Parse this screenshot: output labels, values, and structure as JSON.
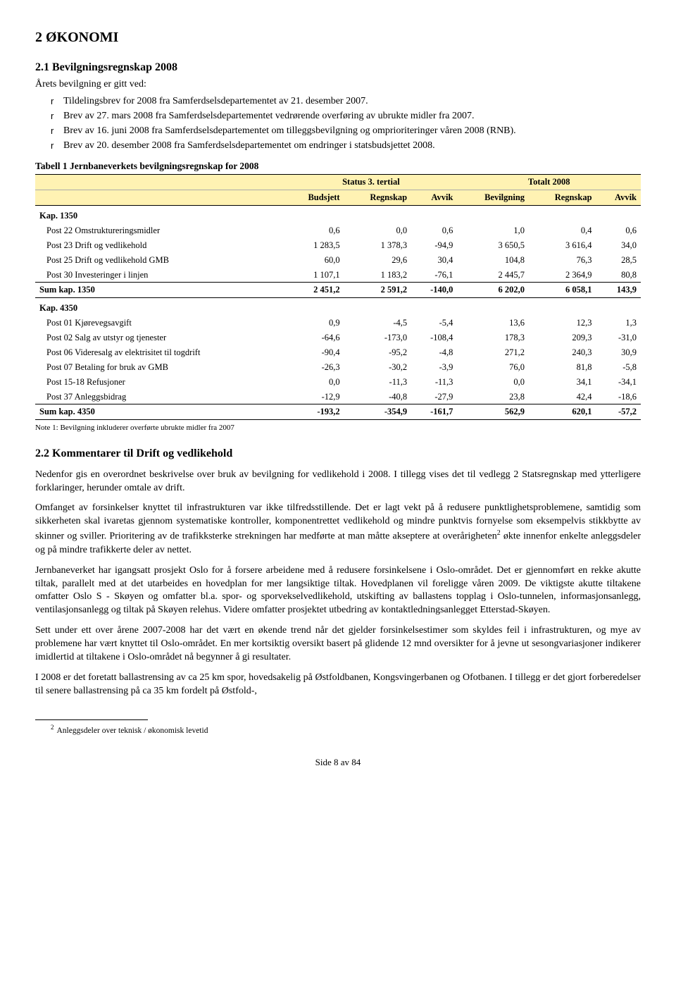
{
  "headings": {
    "h1": "2  ØKONOMI",
    "h2a": "2.1  Bevilgningsregnskap 2008",
    "h2a_sub": "Årets bevilgning er gitt ved:",
    "h2b": "2.2  Kommentarer til Drift og vedlikehold"
  },
  "bullets": [
    "Tildelingsbrev for 2008 fra Samferdselsdepartementet av 21. desember 2007.",
    "Brev av 27. mars 2008 fra Samferdselsdepartementet vedrørende overføring av ubrukte midler fra 2007.",
    "Brev av 16. juni 2008 fra Samferdselsdepartementet om tilleggsbevilgning og omprioriteringer våren 2008 (RNB).",
    "Brev av 20. desember 2008 fra Samferdselsdepartementet om endringer i statsbudsjettet 2008."
  ],
  "table": {
    "caption": "Tabell 1 Jernbaneverkets bevilgningsregnskap for 2008",
    "group1": "Status 3. tertial",
    "group2": "Totalt 2008",
    "cols": [
      "Budsjett",
      "Regnskap",
      "Avvik",
      "Bevilgning",
      "Regnskap",
      "Avvik"
    ],
    "sec1": "Kap. 1350",
    "rows1": [
      {
        "label": "Post 22 Omstruktureringsmidler",
        "v": [
          "0,6",
          "0,0",
          "0,6",
          "1,0",
          "0,4",
          "0,6"
        ]
      },
      {
        "label": "Post 23 Drift og vedlikehold",
        "v": [
          "1 283,5",
          "1 378,3",
          "-94,9",
          "3 650,5",
          "3 616,4",
          "34,0"
        ]
      },
      {
        "label": "Post 25 Drift og vedlikehold GMB",
        "v": [
          "60,0",
          "29,6",
          "30,4",
          "104,8",
          "76,3",
          "28,5"
        ]
      },
      {
        "label": "Post 30 Investeringer i linjen",
        "v": [
          "1 107,1",
          "1 183,2",
          "-76,1",
          "2 445,7",
          "2 364,9",
          "80,8"
        ]
      }
    ],
    "sum1": {
      "label": "Sum kap. 1350",
      "v": [
        "2 451,2",
        "2 591,2",
        "-140,0",
        "6 202,0",
        "6 058,1",
        "143,9"
      ]
    },
    "sec2": "Kap. 4350",
    "rows2": [
      {
        "label": "Post 01 Kjørevegsavgift",
        "v": [
          "0,9",
          "-4,5",
          "-5,4",
          "13,6",
          "12,3",
          "1,3"
        ]
      },
      {
        "label": "Post 02 Salg av utstyr og tjenester",
        "v": [
          "-64,6",
          "-173,0",
          "-108,4",
          "178,3",
          "209,3",
          "-31,0"
        ]
      },
      {
        "label": "Post 06 Videresalg av elektrisitet til togdrift",
        "v": [
          "-90,4",
          "-95,2",
          "-4,8",
          "271,2",
          "240,3",
          "30,9"
        ]
      },
      {
        "label": "Post 07 Betaling for bruk av GMB",
        "v": [
          "-26,3",
          "-30,2",
          "-3,9",
          "76,0",
          "81,8",
          "-5,8"
        ]
      },
      {
        "label": "Post 15-18 Refusjoner",
        "v": [
          "0,0",
          "-11,3",
          "-11,3",
          "0,0",
          "34,1",
          "-34,1"
        ]
      },
      {
        "label": "Post 37 Anleggsbidrag",
        "v": [
          "-12,9",
          "-40,8",
          "-27,9",
          "23,8",
          "42,4",
          "-18,6"
        ]
      }
    ],
    "sum2": {
      "label": "Sum kap. 4350",
      "v": [
        "-193,2",
        "-354,9",
        "-161,7",
        "562,9",
        "620,1",
        "-57,2"
      ]
    },
    "note": "Note 1: Bevilgning inkluderer overførte ubrukte midler fra 2007"
  },
  "paras": {
    "p1": "Nedenfor gis en overordnet beskrivelse over bruk av bevilgning for vedlikehold i 2008. I tillegg vises det til vedlegg 2 Statsregnskap med ytterligere forklaringer, herunder omtale av drift.",
    "p2a": "Omfanget av forsinkelser knyttet til infrastrukturen var ikke tilfredsstillende. Det er lagt vekt på å redusere punktlighetsproblemene, samtidig som sikkerheten skal ivaretas gjennom systematiske kontroller, komponentrettet vedlikehold og mindre punktvis fornyelse som eksempelvis stikkbytte av skinner og sviller. Prioritering av de trafikksterke strekningen har medførte at man måtte akseptere at overårigheten",
    "p2b": " økte innenfor enkelte anleggsdeler og på mindre trafikkerte deler av nettet.",
    "p3": "Jernbaneverket har igangsatt prosjekt Oslo for å forsere arbeidene med å redusere forsinkelsene i Oslo-området. Det er gjennomført en rekke akutte tiltak, parallelt med at det utarbeides en hovedplan for mer langsiktige tiltak. Hovedplanen vil foreligge våren 2009. De viktigste akutte tiltakene omfatter Oslo S - Skøyen og omfatter bl.a. spor- og sporvekselvedlikehold, utskifting av ballastens topplag i Oslo-tunnelen, informasjonsanlegg, ventilasjonsanlegg og tiltak på Skøyen relehus. Videre omfatter prosjektet utbedring av kontaktledningsanlegget Etterstad-Skøyen.",
    "p4": "Sett under ett over årene 2007-2008 har det vært en økende trend når det gjelder forsinkelsestimer som skyldes feil i infrastrukturen, og mye av problemene har vært knyttet til Oslo-området. En mer kortsiktig oversikt basert på glidende 12 mnd oversikter for å jevne ut sesongvariasjoner indikerer imidlertid at tiltakene i Oslo-området nå begynner å gi resultater.",
    "p5": "I 2008 er det foretatt ballastrensing av ca 25 km spor, hovedsakelig på Østfoldbanen, Kongsvingerbanen og Ofotbanen. I tillegg er det gjort forberedelser til senere ballastrensing på ca 35 km fordelt på Østfold-,"
  },
  "footnote": "Anleggsdeler over teknisk / økonomisk levetid",
  "footer": "Side 8 av 84"
}
